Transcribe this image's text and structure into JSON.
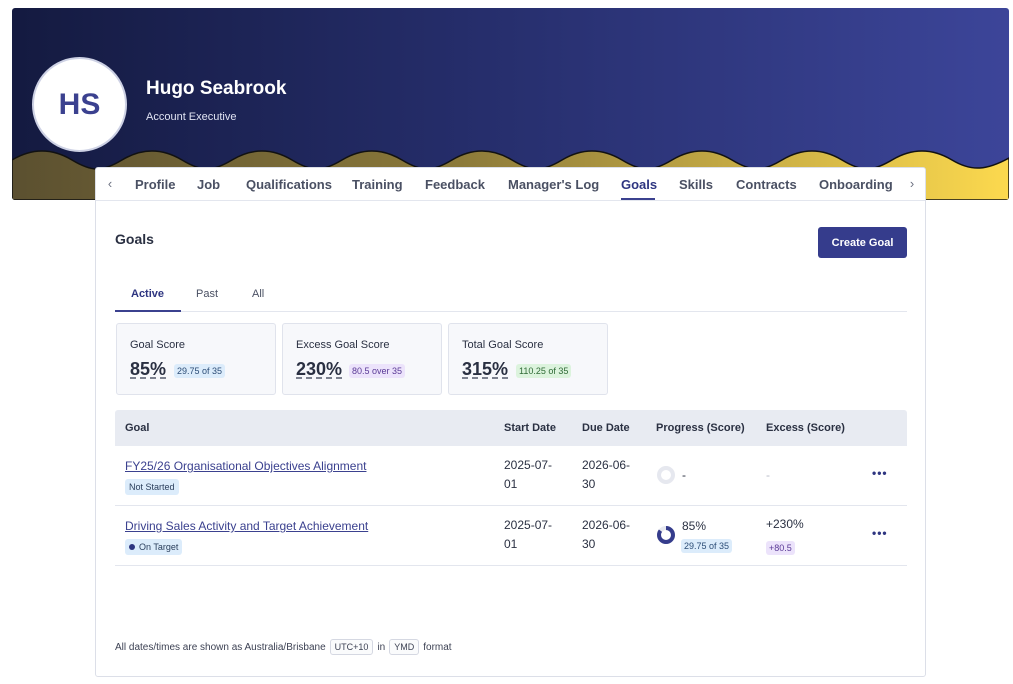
{
  "employee": {
    "initials": "HS",
    "name": "Hugo Seabrook",
    "role": "Account Executive"
  },
  "tabs": [
    {
      "label": "Profile",
      "active": false
    },
    {
      "label": "Job",
      "active": false
    },
    {
      "label": "Qualifications",
      "active": false
    },
    {
      "label": "Training",
      "active": false
    },
    {
      "label": "Feedback",
      "active": false
    },
    {
      "label": "Manager's Log",
      "active": false
    },
    {
      "label": "Goals",
      "active": true
    },
    {
      "label": "Skills",
      "active": false
    },
    {
      "label": "Contracts",
      "active": false
    },
    {
      "label": "Onboarding",
      "active": false
    }
  ],
  "tab_nav": {
    "prev_icon": "chevron-left-icon",
    "next_icon": "chevron-right-icon"
  },
  "goals": {
    "title": "Goals",
    "create_button": "Create Goal",
    "subtabs": [
      {
        "label": "Active",
        "active": true
      },
      {
        "label": "Past",
        "active": false
      },
      {
        "label": "All",
        "active": false
      }
    ],
    "scores": [
      {
        "label": "Goal Score",
        "value": "85%",
        "detail": "29.75 of 35",
        "color": "blue"
      },
      {
        "label": "Excess Goal Score",
        "value": "230%",
        "detail": "80.5 over 35",
        "color": "purple"
      },
      {
        "label": "Total Goal Score",
        "value": "315%",
        "detail": "110.25 of 35",
        "color": "green"
      }
    ],
    "table": {
      "headers": [
        "Goal",
        "Start Date",
        "Due Date",
        "Progress (Score)",
        "Excess (Score)"
      ],
      "rows": [
        {
          "goal": "FY25/26 Organisational Objectives Alignment",
          "status": "Not Started",
          "start_date_line1": "2025-07-",
          "start_date_line2": "01",
          "due_date_line1": "2026-06-",
          "due_date_line2": "30",
          "progress": "-",
          "progress_fraction": 0,
          "progress_detail": "",
          "excess": "-",
          "excess_detail": "",
          "more_icon": "more-horizontal-icon"
        },
        {
          "goal": "Driving Sales Activity and Target Achievement",
          "status": "On Target",
          "start_date_line1": "2025-07-",
          "start_date_line2": "01",
          "due_date_line1": "2026-06-",
          "due_date_line2": "30",
          "progress": "85%",
          "progress_fraction": 0.85,
          "progress_detail": "29.75 of 35",
          "excess": "+230%",
          "excess_detail": "+80.5",
          "more_icon": "more-horizontal-icon"
        }
      ]
    },
    "footer": {
      "prefix": "All dates/times are shown as Australia/Brisbane",
      "timezone": "UTC+10",
      "middle": "in",
      "format": "YMD",
      "suffix": "format"
    }
  },
  "colors": {
    "brand": "#353c8c",
    "banner_start": "#141a40",
    "banner_end": "#3c4599",
    "wave_yellow": "#fcd94e",
    "wave_olive": "#5b5030"
  }
}
